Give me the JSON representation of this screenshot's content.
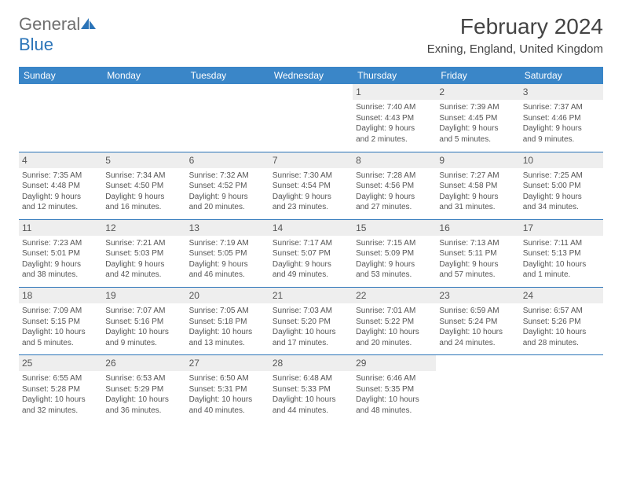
{
  "header": {
    "logo_part1": "General",
    "logo_part2": "Blue",
    "month_title": "February 2024",
    "location": "Exning, England, United Kingdom"
  },
  "colors": {
    "header_bg": "#3a86c8",
    "header_text": "#ffffff",
    "daynum_bg": "#eeeeee",
    "border": "#2b74b8",
    "body_text": "#555555",
    "logo_gray": "#6f6f6f",
    "logo_blue": "#2b74b8",
    "page_bg": "#ffffff"
  },
  "typography": {
    "month_title_fontsize": 28,
    "location_fontsize": 15,
    "weekday_fontsize": 12,
    "daynum_fontsize": 12,
    "cell_fontsize": 10,
    "logo_fontsize": 22
  },
  "weekdays": [
    "Sunday",
    "Monday",
    "Tuesday",
    "Wednesday",
    "Thursday",
    "Friday",
    "Saturday"
  ],
  "weeks": [
    [
      null,
      null,
      null,
      null,
      {
        "d": "1",
        "sr": "Sunrise: 7:40 AM",
        "ss": "Sunset: 4:43 PM",
        "dl1": "Daylight: 9 hours",
        "dl2": "and 2 minutes."
      },
      {
        "d": "2",
        "sr": "Sunrise: 7:39 AM",
        "ss": "Sunset: 4:45 PM",
        "dl1": "Daylight: 9 hours",
        "dl2": "and 5 minutes."
      },
      {
        "d": "3",
        "sr": "Sunrise: 7:37 AM",
        "ss": "Sunset: 4:46 PM",
        "dl1": "Daylight: 9 hours",
        "dl2": "and 9 minutes."
      }
    ],
    [
      {
        "d": "4",
        "sr": "Sunrise: 7:35 AM",
        "ss": "Sunset: 4:48 PM",
        "dl1": "Daylight: 9 hours",
        "dl2": "and 12 minutes."
      },
      {
        "d": "5",
        "sr": "Sunrise: 7:34 AM",
        "ss": "Sunset: 4:50 PM",
        "dl1": "Daylight: 9 hours",
        "dl2": "and 16 minutes."
      },
      {
        "d": "6",
        "sr": "Sunrise: 7:32 AM",
        "ss": "Sunset: 4:52 PM",
        "dl1": "Daylight: 9 hours",
        "dl2": "and 20 minutes."
      },
      {
        "d": "7",
        "sr": "Sunrise: 7:30 AM",
        "ss": "Sunset: 4:54 PM",
        "dl1": "Daylight: 9 hours",
        "dl2": "and 23 minutes."
      },
      {
        "d": "8",
        "sr": "Sunrise: 7:28 AM",
        "ss": "Sunset: 4:56 PM",
        "dl1": "Daylight: 9 hours",
        "dl2": "and 27 minutes."
      },
      {
        "d": "9",
        "sr": "Sunrise: 7:27 AM",
        "ss": "Sunset: 4:58 PM",
        "dl1": "Daylight: 9 hours",
        "dl2": "and 31 minutes."
      },
      {
        "d": "10",
        "sr": "Sunrise: 7:25 AM",
        "ss": "Sunset: 5:00 PM",
        "dl1": "Daylight: 9 hours",
        "dl2": "and 34 minutes."
      }
    ],
    [
      {
        "d": "11",
        "sr": "Sunrise: 7:23 AM",
        "ss": "Sunset: 5:01 PM",
        "dl1": "Daylight: 9 hours",
        "dl2": "and 38 minutes."
      },
      {
        "d": "12",
        "sr": "Sunrise: 7:21 AM",
        "ss": "Sunset: 5:03 PM",
        "dl1": "Daylight: 9 hours",
        "dl2": "and 42 minutes."
      },
      {
        "d": "13",
        "sr": "Sunrise: 7:19 AM",
        "ss": "Sunset: 5:05 PM",
        "dl1": "Daylight: 9 hours",
        "dl2": "and 46 minutes."
      },
      {
        "d": "14",
        "sr": "Sunrise: 7:17 AM",
        "ss": "Sunset: 5:07 PM",
        "dl1": "Daylight: 9 hours",
        "dl2": "and 49 minutes."
      },
      {
        "d": "15",
        "sr": "Sunrise: 7:15 AM",
        "ss": "Sunset: 5:09 PM",
        "dl1": "Daylight: 9 hours",
        "dl2": "and 53 minutes."
      },
      {
        "d": "16",
        "sr": "Sunrise: 7:13 AM",
        "ss": "Sunset: 5:11 PM",
        "dl1": "Daylight: 9 hours",
        "dl2": "and 57 minutes."
      },
      {
        "d": "17",
        "sr": "Sunrise: 7:11 AM",
        "ss": "Sunset: 5:13 PM",
        "dl1": "Daylight: 10 hours",
        "dl2": "and 1 minute."
      }
    ],
    [
      {
        "d": "18",
        "sr": "Sunrise: 7:09 AM",
        "ss": "Sunset: 5:15 PM",
        "dl1": "Daylight: 10 hours",
        "dl2": "and 5 minutes."
      },
      {
        "d": "19",
        "sr": "Sunrise: 7:07 AM",
        "ss": "Sunset: 5:16 PM",
        "dl1": "Daylight: 10 hours",
        "dl2": "and 9 minutes."
      },
      {
        "d": "20",
        "sr": "Sunrise: 7:05 AM",
        "ss": "Sunset: 5:18 PM",
        "dl1": "Daylight: 10 hours",
        "dl2": "and 13 minutes."
      },
      {
        "d": "21",
        "sr": "Sunrise: 7:03 AM",
        "ss": "Sunset: 5:20 PM",
        "dl1": "Daylight: 10 hours",
        "dl2": "and 17 minutes."
      },
      {
        "d": "22",
        "sr": "Sunrise: 7:01 AM",
        "ss": "Sunset: 5:22 PM",
        "dl1": "Daylight: 10 hours",
        "dl2": "and 20 minutes."
      },
      {
        "d": "23",
        "sr": "Sunrise: 6:59 AM",
        "ss": "Sunset: 5:24 PM",
        "dl1": "Daylight: 10 hours",
        "dl2": "and 24 minutes."
      },
      {
        "d": "24",
        "sr": "Sunrise: 6:57 AM",
        "ss": "Sunset: 5:26 PM",
        "dl1": "Daylight: 10 hours",
        "dl2": "and 28 minutes."
      }
    ],
    [
      {
        "d": "25",
        "sr": "Sunrise: 6:55 AM",
        "ss": "Sunset: 5:28 PM",
        "dl1": "Daylight: 10 hours",
        "dl2": "and 32 minutes."
      },
      {
        "d": "26",
        "sr": "Sunrise: 6:53 AM",
        "ss": "Sunset: 5:29 PM",
        "dl1": "Daylight: 10 hours",
        "dl2": "and 36 minutes."
      },
      {
        "d": "27",
        "sr": "Sunrise: 6:50 AM",
        "ss": "Sunset: 5:31 PM",
        "dl1": "Daylight: 10 hours",
        "dl2": "and 40 minutes."
      },
      {
        "d": "28",
        "sr": "Sunrise: 6:48 AM",
        "ss": "Sunset: 5:33 PM",
        "dl1": "Daylight: 10 hours",
        "dl2": "and 44 minutes."
      },
      {
        "d": "29",
        "sr": "Sunrise: 6:46 AM",
        "ss": "Sunset: 5:35 PM",
        "dl1": "Daylight: 10 hours",
        "dl2": "and 48 minutes."
      },
      null,
      null
    ]
  ]
}
